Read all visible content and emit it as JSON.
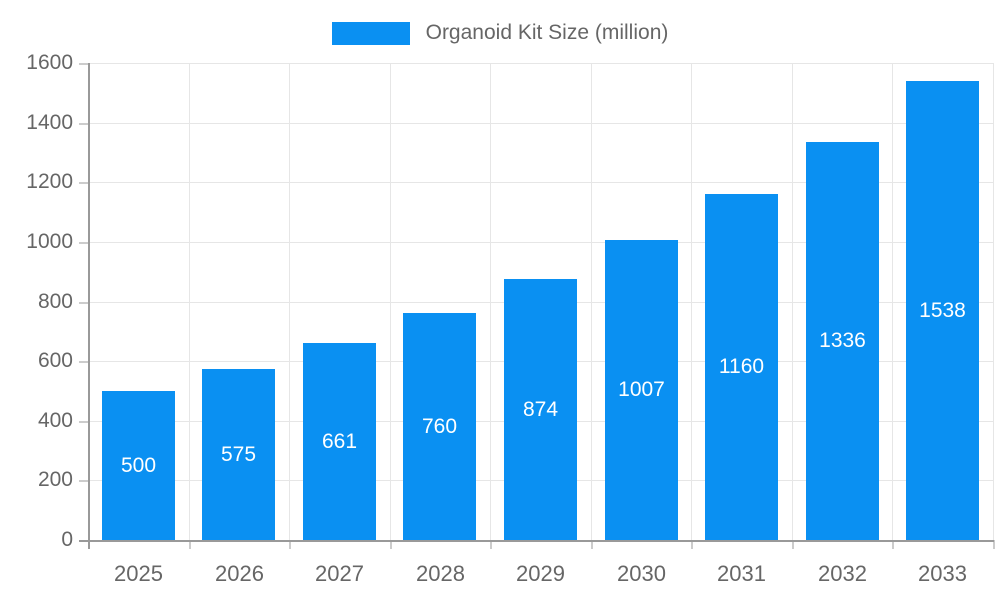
{
  "legend": {
    "label": "Organoid Kit Size (million)"
  },
  "colors": {
    "bar": "#0a90f2",
    "grid": "#e6e6e6",
    "tick": "#cccccc",
    "axis": "#999999",
    "tick_text": "#666666",
    "value_label_text": "#ffffff"
  },
  "chart_data": {
    "type": "bar",
    "title": "Organoid Kit Size (million)",
    "categories": [
      "2025",
      "2026",
      "2027",
      "2028",
      "2029",
      "2030",
      "2031",
      "2032",
      "2033"
    ],
    "values": [
      500,
      575,
      661,
      760,
      874,
      1007,
      1160,
      1336,
      1538
    ],
    "xlabel": "",
    "ylabel": "",
    "ylim": [
      0,
      1600
    ],
    "ytick_interval": 200,
    "ytick_labels": [
      "0",
      "200",
      "400",
      "600",
      "800",
      "1000",
      "1200",
      "1400",
      "1600"
    ],
    "grid": true,
    "legend_position": "top-center",
    "value_labels": "inside-center"
  }
}
